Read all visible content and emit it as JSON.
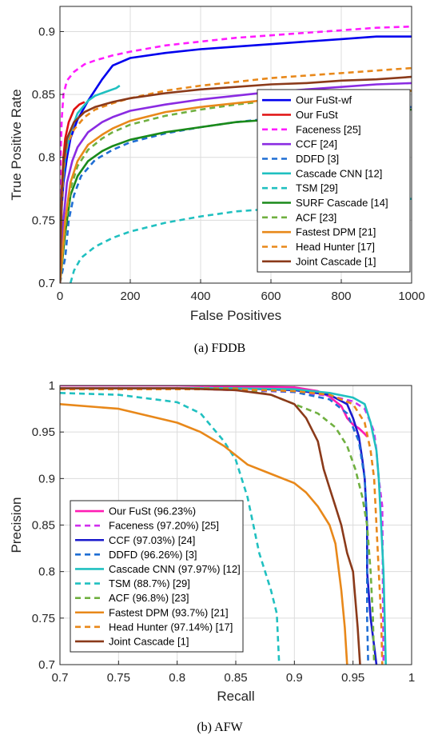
{
  "chart_data": [
    {
      "type": "line",
      "caption": "(a) FDDB",
      "xlabel": "False Positives",
      "ylabel": "True Positive Rate",
      "xlim": [
        0,
        1000
      ],
      "ylim": [
        0.7,
        0.92
      ],
      "xticks": [
        0,
        200,
        400,
        600,
        800,
        1000
      ],
      "yticks": [
        0.7,
        0.75,
        0.8,
        0.85,
        0.9
      ],
      "grid": true,
      "legend_position": "bottom-right",
      "series": [
        {
          "name": "Our FuSt-wf",
          "color": "#0000ee",
          "dash": "solid",
          "x": [
            0,
            5,
            10,
            20,
            30,
            50,
            80,
            120,
            150,
            200,
            300,
            400,
            500,
            600,
            700,
            800,
            900,
            1000
          ],
          "y": [
            0.7,
            0.76,
            0.78,
            0.8,
            0.815,
            0.83,
            0.845,
            0.862,
            0.873,
            0.879,
            0.883,
            0.886,
            0.888,
            0.89,
            0.892,
            0.894,
            0.896,
            0.896
          ]
        },
        {
          "name": "Our FuSt",
          "color": "#e01010",
          "dash": "solid",
          "x": [
            0,
            3,
            6,
            10,
            15,
            25,
            40,
            55,
            70
          ],
          "y": [
            0.7,
            0.75,
            0.78,
            0.8,
            0.815,
            0.828,
            0.838,
            0.842,
            0.844
          ]
        },
        {
          "name": "Faceness [25]",
          "color": "#ff1cff",
          "dash": "dashed",
          "x": [
            0,
            2,
            5,
            10,
            20,
            40,
            70,
            100,
            150,
            200,
            300,
            400,
            500,
            600,
            700,
            800,
            900,
            1000
          ],
          "y": [
            0.74,
            0.8,
            0.83,
            0.85,
            0.861,
            0.868,
            0.874,
            0.877,
            0.881,
            0.884,
            0.889,
            0.892,
            0.895,
            0.897,
            0.899,
            0.901,
            0.903,
            0.904
          ]
        },
        {
          "name": "CCF [24]",
          "color": "#8a2be2",
          "dash": "solid",
          "x": [
            0,
            10,
            20,
            35,
            50,
            80,
            120,
            150,
            200,
            300,
            400,
            500,
            600,
            700,
            800,
            900,
            1000
          ],
          "y": [
            0.7,
            0.75,
            0.78,
            0.797,
            0.808,
            0.82,
            0.828,
            0.832,
            0.837,
            0.842,
            0.846,
            0.849,
            0.852,
            0.854,
            0.856,
            0.858,
            0.859
          ]
        },
        {
          "name": "DDFD [3]",
          "color": "#1f6ed4",
          "dash": "dashed",
          "x": [
            0,
            15,
            25,
            40,
            60,
            100,
            150,
            200,
            300,
            400,
            500,
            600,
            700,
            800,
            900,
            1000
          ],
          "y": [
            0.7,
            0.72,
            0.75,
            0.77,
            0.785,
            0.798,
            0.806,
            0.812,
            0.819,
            0.824,
            0.828,
            0.831,
            0.834,
            0.836,
            0.838,
            0.84
          ]
        },
        {
          "name": "Cascade CNN [12]",
          "color": "#20c0c0",
          "dash": "solid",
          "x": [
            0,
            5,
            15,
            30,
            50,
            80,
            100,
            130,
            160,
            170
          ],
          "y": [
            0.7,
            0.77,
            0.8,
            0.82,
            0.835,
            0.845,
            0.849,
            0.852,
            0.855,
            0.857
          ]
        },
        {
          "name": "TSM [29]",
          "color": "#20c0c0",
          "dash": "dashed",
          "x": [
            30,
            40,
            60,
            100,
            150,
            200,
            300,
            400,
            500,
            600,
            700,
            800,
            900,
            1000
          ],
          "y": [
            0.7,
            0.71,
            0.72,
            0.729,
            0.736,
            0.741,
            0.748,
            0.753,
            0.757,
            0.759,
            0.761,
            0.763,
            0.765,
            0.767
          ]
        },
        {
          "name": "SURF Cascade [14]",
          "color": "#1a8a1a",
          "dash": "solid",
          "x": [
            0,
            15,
            30,
            50,
            80,
            120,
            150,
            200,
            300,
            400,
            500,
            600,
            700,
            800,
            900,
            1000
          ],
          "y": [
            0.7,
            0.74,
            0.77,
            0.785,
            0.797,
            0.805,
            0.809,
            0.814,
            0.82,
            0.824,
            0.828,
            0.83,
            0.832,
            0.834,
            0.836,
            0.838
          ]
        },
        {
          "name": "ACF [23]",
          "color": "#70b040",
          "dash": "dashed",
          "x": [
            0,
            15,
            30,
            50,
            80,
            120,
            150,
            200,
            300,
            400,
            500,
            600,
            700,
            800,
            900,
            1000
          ],
          "y": [
            0.7,
            0.745,
            0.775,
            0.793,
            0.806,
            0.815,
            0.82,
            0.826,
            0.833,
            0.838,
            0.842,
            0.845,
            0.847,
            0.849,
            0.851,
            0.853
          ]
        },
        {
          "name": "Fastest DPM [21]",
          "color": "#e8881a",
          "dash": "solid",
          "x": [
            0,
            15,
            30,
            50,
            80,
            120,
            150,
            200,
            300,
            400,
            500,
            600,
            700,
            800,
            900,
            1000
          ],
          "y": [
            0.7,
            0.75,
            0.78,
            0.797,
            0.81,
            0.818,
            0.823,
            0.829,
            0.836,
            0.84,
            0.843,
            0.846,
            0.848,
            0.85,
            0.852,
            0.853
          ]
        },
        {
          "name": "Head Hunter [17]",
          "color": "#e8881a",
          "dash": "dashed",
          "x": [
            0,
            5,
            10,
            20,
            40,
            70,
            100,
            150,
            200,
            300,
            400,
            500,
            600,
            700,
            800,
            900,
            1000
          ],
          "y": [
            0.7,
            0.76,
            0.79,
            0.81,
            0.822,
            0.832,
            0.838,
            0.843,
            0.847,
            0.853,
            0.857,
            0.86,
            0.863,
            0.865,
            0.867,
            0.869,
            0.871
          ]
        },
        {
          "name": "Joint Cascade [1]",
          "color": "#8b3a1a",
          "dash": "solid",
          "x": [
            0,
            5,
            10,
            20,
            40,
            70,
            100,
            150,
            200,
            300,
            400,
            500,
            600,
            700,
            800,
            900,
            1000
          ],
          "y": [
            0.7,
            0.77,
            0.795,
            0.815,
            0.828,
            0.836,
            0.84,
            0.844,
            0.847,
            0.851,
            0.854,
            0.856,
            0.858,
            0.859,
            0.861,
            0.862,
            0.864
          ]
        }
      ]
    },
    {
      "type": "line",
      "caption": "(b) AFW",
      "xlabel": "Recall",
      "ylabel": "Precision",
      "xlim": [
        0.7,
        1
      ],
      "ylim": [
        0.7,
        1
      ],
      "xticks": [
        0.7,
        0.75,
        0.8,
        0.85,
        0.9,
        0.95,
        1
      ],
      "yticks": [
        0.7,
        0.75,
        0.8,
        0.85,
        0.9,
        0.95,
        1
      ],
      "grid": true,
      "legend_position": "bottom-left",
      "series": [
        {
          "name": "Our FuSt (96.23%)",
          "color": "#ff1cb4",
          "dash": "solid",
          "x": [
            0.7,
            0.8,
            0.9,
            0.92,
            0.93,
            0.94,
            0.945,
            0.95,
            0.955,
            0.96,
            0.962
          ],
          "y": [
            1.0,
            1.0,
            0.998,
            0.994,
            0.988,
            0.978,
            0.965,
            0.958,
            0.954,
            0.948,
            0.945
          ]
        },
        {
          "name": "Faceness (97.20%) [25]",
          "color": "#d030ee",
          "dash": "dashed",
          "x": [
            0.7,
            0.8,
            0.9,
            0.93,
            0.95,
            0.96,
            0.965,
            0.968,
            0.97,
            0.972,
            0.975,
            0.976
          ],
          "y": [
            0.997,
            0.997,
            0.993,
            0.989,
            0.983,
            0.975,
            0.96,
            0.95,
            0.93,
            0.9,
            0.87,
            0.7
          ]
        },
        {
          "name": "CCF (97.03%) [24]",
          "color": "#1a1acc",
          "dash": "solid",
          "x": [
            0.7,
            0.85,
            0.9,
            0.93,
            0.945,
            0.95,
            0.955,
            0.958,
            0.96,
            0.962,
            0.962,
            0.965,
            0.968,
            0.97
          ],
          "y": [
            0.997,
            0.997,
            0.995,
            0.99,
            0.98,
            0.965,
            0.945,
            0.92,
            0.9,
            0.85,
            0.8,
            0.75,
            0.72,
            0.7
          ]
        },
        {
          "name": "DDFD (96.26%) [3]",
          "color": "#1f6ed4",
          "dash": "dashed",
          "x": [
            0.7,
            0.85,
            0.9,
            0.93,
            0.945,
            0.955,
            0.96,
            0.962,
            0.962,
            0.963
          ],
          "y": [
            0.996,
            0.996,
            0.993,
            0.985,
            0.97,
            0.94,
            0.9,
            0.85,
            0.75,
            0.7
          ]
        },
        {
          "name": "Cascade CNN (97.97%) [12]",
          "color": "#20c0c0",
          "dash": "solid",
          "x": [
            0.7,
            0.85,
            0.9,
            0.93,
            0.95,
            0.96,
            0.965,
            0.97,
            0.972,
            0.974,
            0.976,
            0.978
          ],
          "y": [
            0.997,
            0.997,
            0.996,
            0.992,
            0.987,
            0.98,
            0.96,
            0.93,
            0.9,
            0.85,
            0.8,
            0.7
          ]
        },
        {
          "name": "TSM (88.7%) [29]",
          "color": "#20c0c0",
          "dash": "dashed",
          "x": [
            0.7,
            0.75,
            0.8,
            0.82,
            0.84,
            0.85,
            0.86,
            0.865,
            0.87,
            0.875,
            0.88,
            0.885,
            0.887
          ],
          "y": [
            0.992,
            0.99,
            0.982,
            0.97,
            0.94,
            0.92,
            0.88,
            0.85,
            0.82,
            0.8,
            0.78,
            0.755,
            0.7
          ]
        },
        {
          "name": "ACF (96.8%) [23]",
          "color": "#70b040",
          "dash": "dashed",
          "x": [
            0.7,
            0.85,
            0.88,
            0.9,
            0.92,
            0.935,
            0.945,
            0.952,
            0.958,
            0.962,
            0.965,
            0.967,
            0.968
          ],
          "y": [
            0.997,
            0.997,
            0.99,
            0.98,
            0.97,
            0.955,
            0.935,
            0.91,
            0.88,
            0.85,
            0.8,
            0.75,
            0.7
          ]
        },
        {
          "name": "Fastest DPM (93.7%) [21]",
          "color": "#e8881a",
          "dash": "solid",
          "x": [
            0.7,
            0.75,
            0.8,
            0.82,
            0.84,
            0.86,
            0.88,
            0.9,
            0.91,
            0.92,
            0.93,
            0.935,
            0.938,
            0.94,
            0.943,
            0.945
          ],
          "y": [
            0.98,
            0.975,
            0.96,
            0.95,
            0.935,
            0.915,
            0.905,
            0.895,
            0.885,
            0.87,
            0.85,
            0.83,
            0.8,
            0.78,
            0.74,
            0.7
          ]
        },
        {
          "name": "Head Hunter (97.14%) [17]",
          "color": "#e8881a",
          "dash": "dashed",
          "x": [
            0.7,
            0.85,
            0.9,
            0.93,
            0.95,
            0.96,
            0.965,
            0.968,
            0.97,
            0.972,
            0.974,
            0.975
          ],
          "y": [
            0.996,
            0.996,
            0.994,
            0.99,
            0.98,
            0.96,
            0.93,
            0.9,
            0.85,
            0.8,
            0.75,
            0.7
          ]
        },
        {
          "name": "Joint Cascade [1]",
          "color": "#8b3a1a",
          "dash": "solid",
          "x": [
            0.7,
            0.8,
            0.85,
            0.88,
            0.9,
            0.91,
            0.92,
            0.925,
            0.93,
            0.935,
            0.94,
            0.945,
            0.95,
            0.952,
            0.954,
            0.956
          ],
          "y": [
            0.997,
            0.997,
            0.995,
            0.99,
            0.98,
            0.965,
            0.94,
            0.91,
            0.89,
            0.87,
            0.85,
            0.82,
            0.8,
            0.77,
            0.74,
            0.7
          ]
        }
      ]
    }
  ]
}
